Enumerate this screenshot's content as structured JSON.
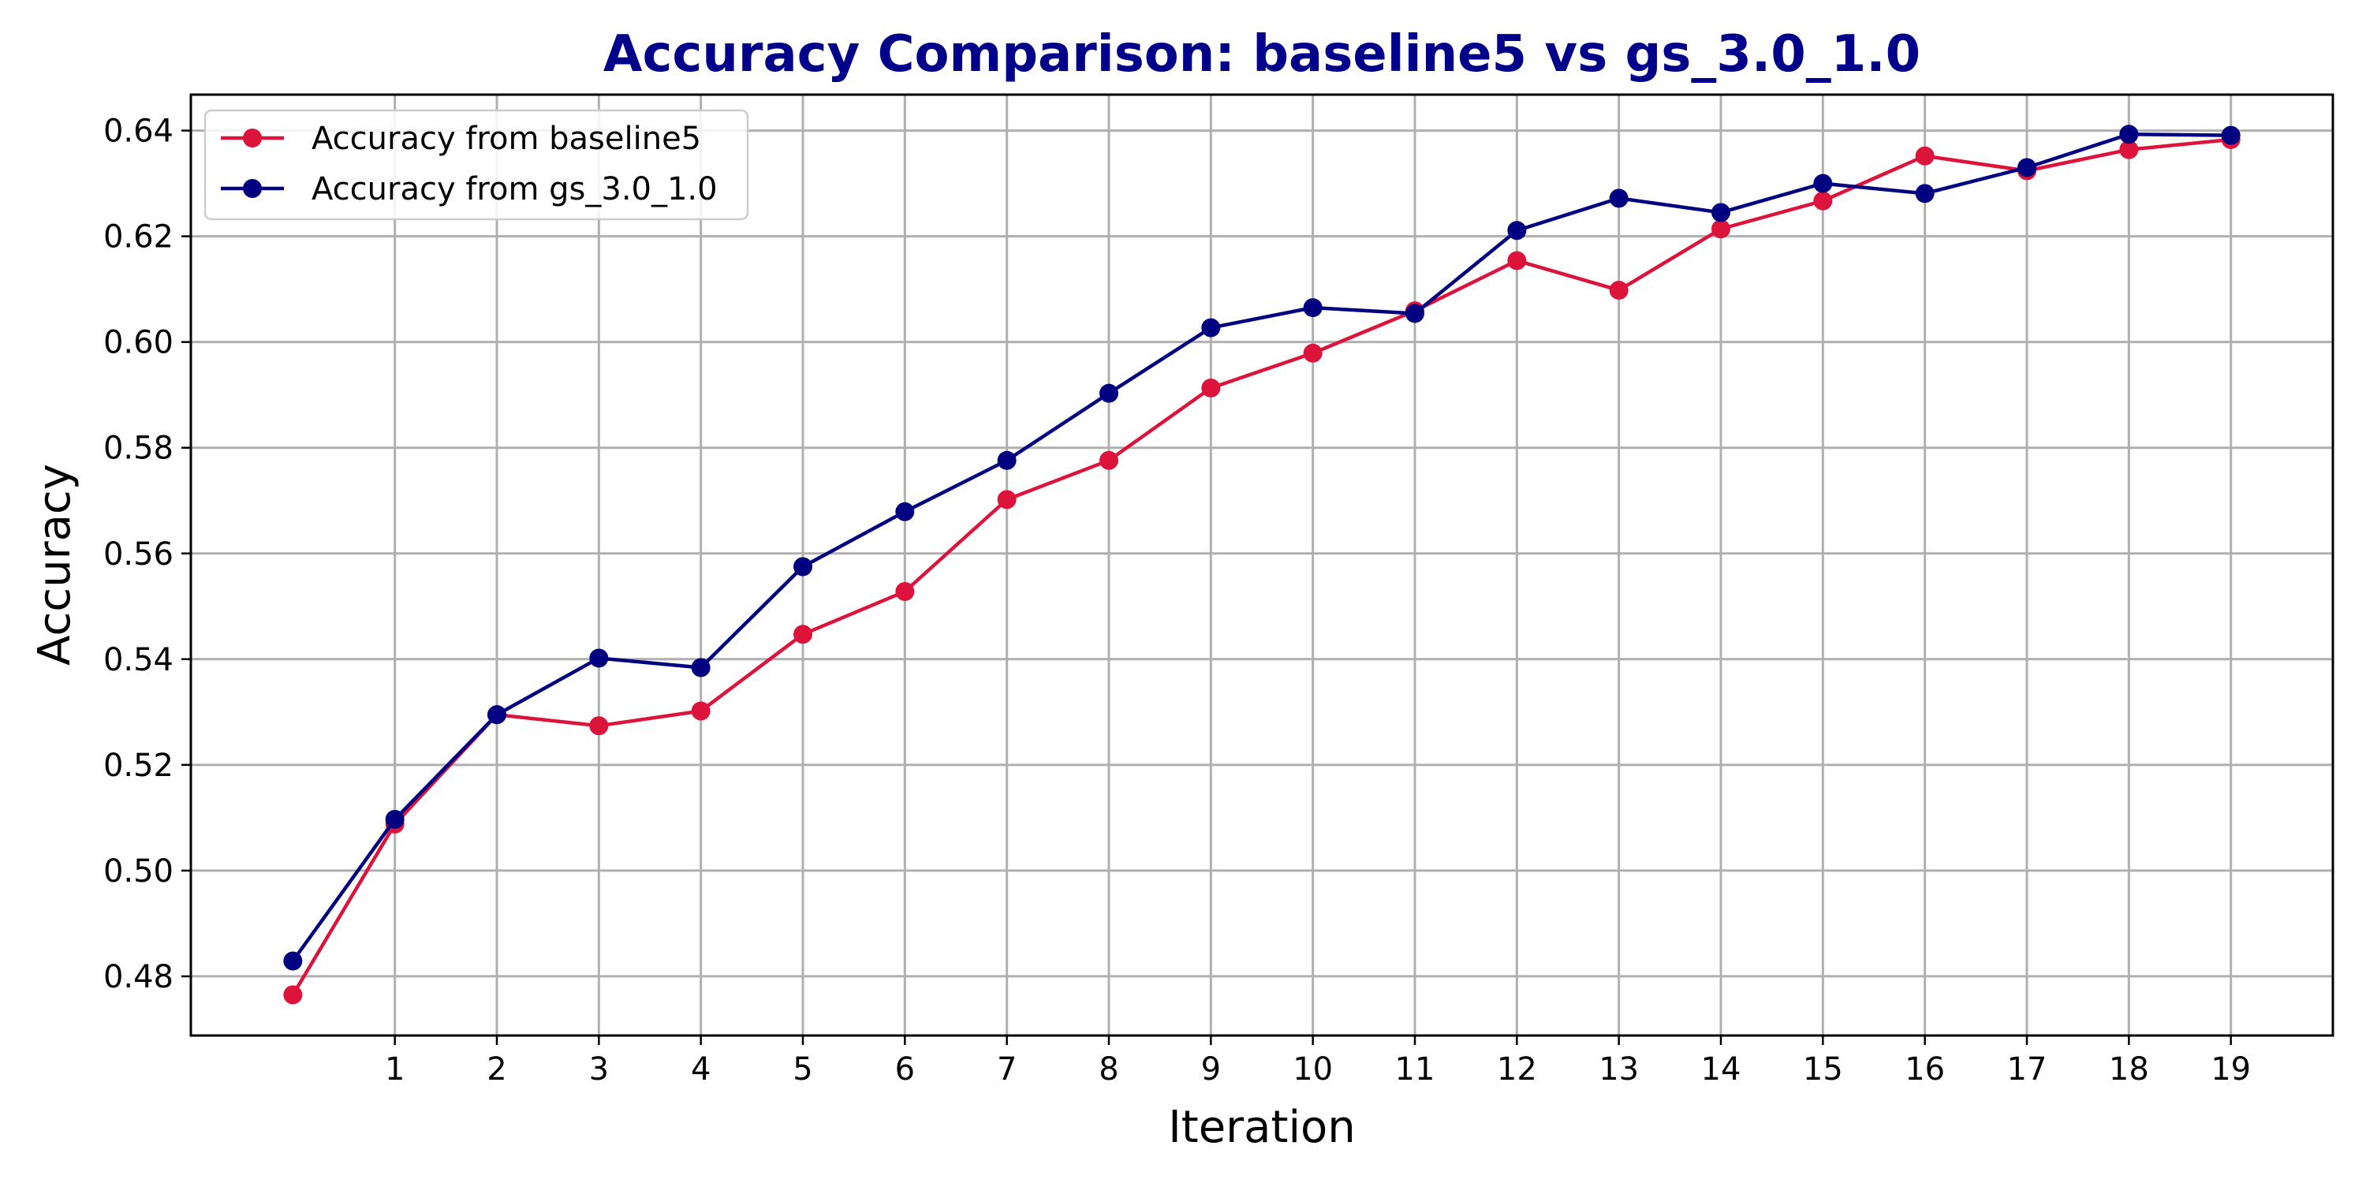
{
  "chart_data": {
    "type": "line",
    "title": "Accuracy Comparison: baseline5 vs gs_3.0_1.0",
    "title_color": "#00008B",
    "xlabel": "Iteration",
    "ylabel": "Accuracy",
    "xlim": [
      -1,
      20
    ],
    "ylim": [
      0.4688,
      0.6468
    ],
    "x_ticks": [
      1,
      2,
      3,
      4,
      5,
      6,
      7,
      8,
      9,
      10,
      11,
      12,
      13,
      14,
      15,
      16,
      17,
      18,
      19
    ],
    "y_ticks": [
      0.48,
      0.5,
      0.52,
      0.54,
      0.56,
      0.58,
      0.6,
      0.62,
      0.64
    ],
    "y_tick_labels": [
      "0.48",
      "0.50",
      "0.52",
      "0.54",
      "0.56",
      "0.58",
      "0.60",
      "0.62",
      "0.64"
    ],
    "grid": true,
    "legend_position": "top-left",
    "x": [
      0,
      1,
      2,
      3,
      4,
      5,
      6,
      7,
      8,
      9,
      10,
      11,
      12,
      13,
      14,
      15,
      16,
      17,
      18,
      19
    ],
    "series": [
      {
        "name": "Accuracy from baseline5",
        "color": "#DC143C",
        "marker": "circle",
        "values": [
          0.4765,
          0.5088,
          0.5295,
          0.5274,
          0.5302,
          0.5447,
          0.5528,
          0.5702,
          0.5776,
          0.5913,
          0.5979,
          0.6059,
          0.6154,
          0.6098,
          0.6214,
          0.6267,
          0.6352,
          0.6324,
          0.6364,
          0.6383
        ]
      },
      {
        "name": "Accuracy from gs_3.0_1.0",
        "color": "#000080",
        "marker": "circle",
        "values": [
          0.4829,
          0.5097,
          0.5295,
          0.5402,
          0.5384,
          0.5575,
          0.5679,
          0.5776,
          0.5903,
          0.6027,
          0.6065,
          0.6054,
          0.6211,
          0.6272,
          0.6245,
          0.63,
          0.6281,
          0.633,
          0.6393,
          0.6391
        ]
      }
    ]
  }
}
